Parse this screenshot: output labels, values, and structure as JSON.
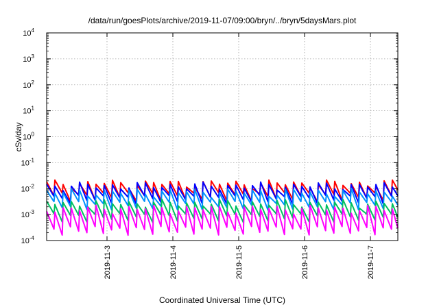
{
  "chart_data": {
    "type": "line",
    "title": "/data/run/goesPlots/archive/2019-11-07/09:00/bryn/../bryn/5daysMars.plot",
    "xlabel": "Coordinated Universal Time (UTC)",
    "ylabel": "cSv/day",
    "yscale": "log",
    "ylim": [
      0.0001,
      10000
    ],
    "xlim": [
      "2019-11-02T02:00",
      "2019-11-07T10:00"
    ],
    "x_ticks": [
      "2019-11-3",
      "2019-11-4",
      "2019-11-5",
      "2019-11-6",
      "2019-11-7"
    ],
    "y_ticks": [
      {
        "base": "10",
        "exp": "-4"
      },
      {
        "base": "10",
        "exp": "-3"
      },
      {
        "base": "10",
        "exp": "-2"
      },
      {
        "base": "10",
        "exp": "-1"
      },
      {
        "base": "10",
        "exp": "0"
      },
      {
        "base": "10",
        "exp": "1"
      },
      {
        "base": "10",
        "exp": "2"
      },
      {
        "base": "10",
        "exp": "3"
      },
      {
        "base": "10",
        "exp": "4"
      }
    ],
    "grid": true,
    "legend": "none",
    "sawtooth_period_hours": 3,
    "series": [
      {
        "color": "#ff0000",
        "peak": 0.016,
        "trough": 0.0045
      },
      {
        "color": "#0000ff",
        "peak": 0.013,
        "trough": 0.0035
      },
      {
        "color": "#0090ff",
        "peak": 0.0075,
        "trough": 0.002
      },
      {
        "color": "#00c060",
        "peak": 0.0028,
        "trough": 0.0007
      },
      {
        "color": "#ff00ff",
        "peak": 0.0017,
        "trough": 0.0002
      }
    ]
  }
}
